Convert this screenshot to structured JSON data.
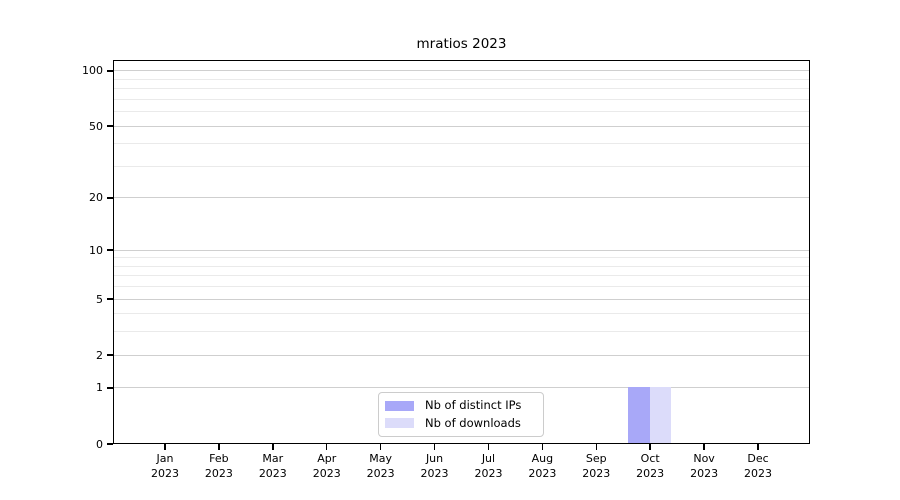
{
  "chart_data": {
    "type": "bar",
    "title": "mratios 2023",
    "months": [
      "Jan",
      "Feb",
      "Mar",
      "Apr",
      "May",
      "Jun",
      "Jul",
      "Aug",
      "Sep",
      "Oct",
      "Nov",
      "Dec"
    ],
    "year_label": "2023",
    "series": [
      {
        "name": "Nb of distinct IPs",
        "color": "#a8a8f8",
        "values": [
          0,
          0,
          0,
          0,
          0,
          0,
          0,
          0,
          0,
          1,
          0,
          0
        ]
      },
      {
        "name": "Nb of downloads",
        "color": "#dcdcfa",
        "values": [
          0,
          0,
          0,
          0,
          0,
          0,
          0,
          0,
          0,
          1,
          0,
          0
        ]
      }
    ],
    "y_axis": {
      "scale": "log1p",
      "major_ticks": [
        0,
        1,
        2,
        5,
        10,
        20,
        50,
        100
      ],
      "minor_gridline_values": [
        3,
        4,
        6,
        7,
        8,
        9,
        30,
        40,
        60,
        70,
        80,
        90
      ],
      "max": 114.7
    },
    "xlabel": "",
    "ylabel": "",
    "grid": "on",
    "legend_position": "lower center",
    "colors": {
      "major_grid": "#cfcfcf",
      "minor_grid": "#eaeaea",
      "axis": "#000000",
      "background": "#ffffff"
    }
  }
}
